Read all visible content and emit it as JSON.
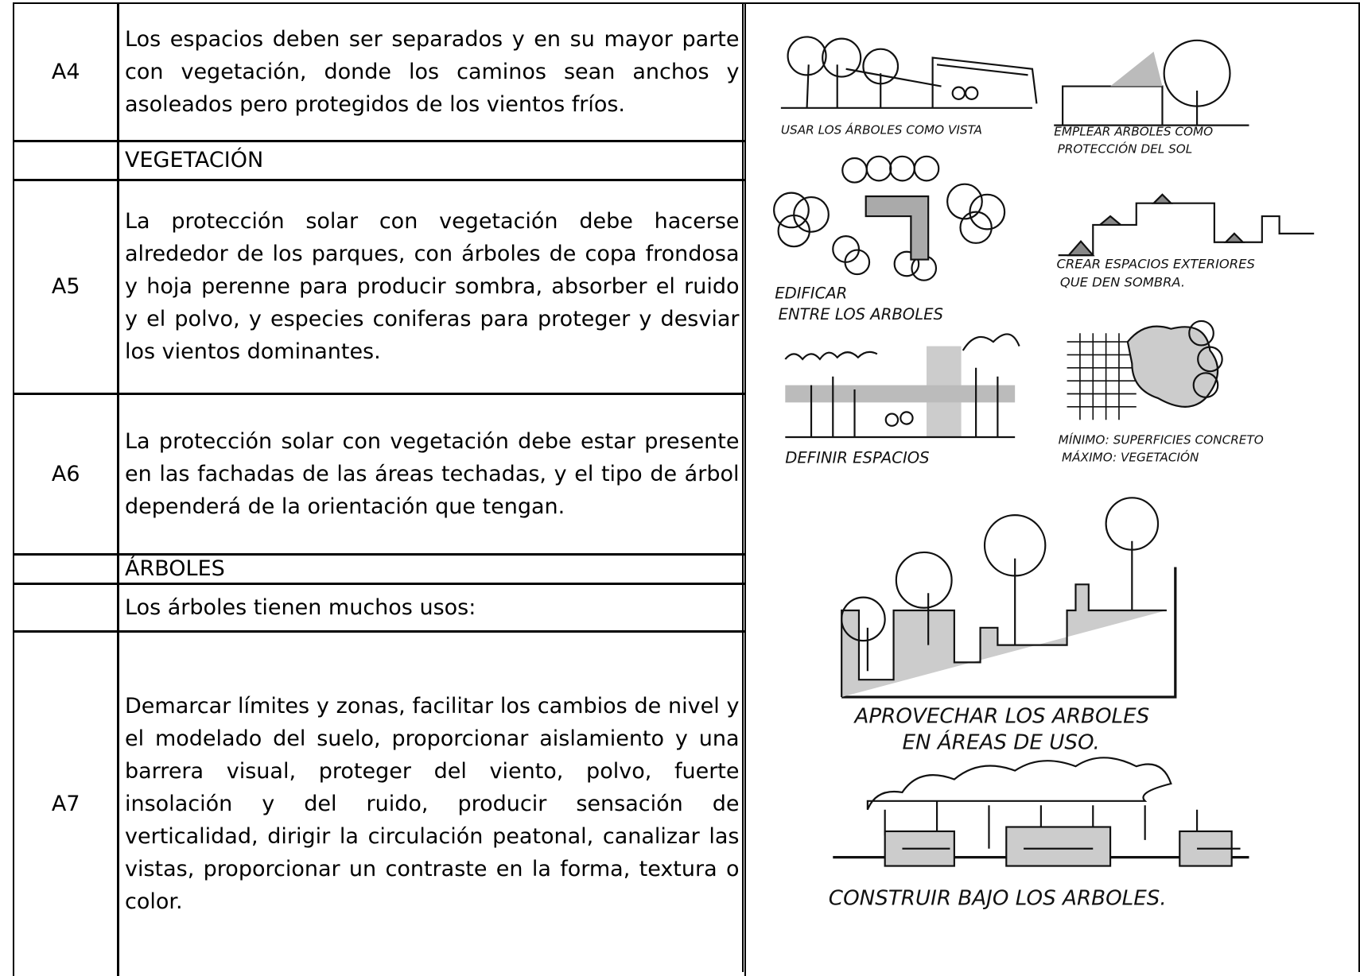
{
  "table": {
    "rows": [
      {
        "code": "A4",
        "text": "Los espacios deben ser separados y en su mayor parte con vegetación, donde los caminos sean anchos y asoleados pero protegidos de los vientos fríos."
      },
      {
        "text": "VEGETACIÓN"
      },
      {
        "code": "A5",
        "text": "La protección solar con vegetación  debe hacerse alrededor de los parques, con árboles de copa frondosa y hoja perenne para producir sombra, absorber el ruido y el polvo, y especies coniferas para proteger y desviar los vientos dominantes."
      },
      {
        "code": "A6",
        "text": "La protección solar con vegetación debe estar presente en las fachadas de las áreas techadas, y el tipo de árbol dependerá de la orientación que tengan."
      },
      {
        "text": "ÁRBOLES"
      },
      {
        "text": "Los árboles tienen muchos usos:"
      },
      {
        "code": "A7",
        "text": "Demarcar límites y zonas, facilitar los cambios de nivel y el modelado del suelo, proporcionar aislamiento y una barrera visual, proteger del viento, polvo, fuerte insolación y del ruido, producir sensación de verticalidad, dirigir la circulación peatonal, canalizar las vistas, proporcionar un contraste en la forma, textura o color."
      }
    ]
  },
  "sketches": {
    "captions": [
      {
        "lines": [
          "USAR LOS ÁRBOLES COMO VISTA"
        ]
      },
      {
        "lines": [
          "EMPLEAR ARBOLES COMO",
          "PROTECCIÓN DEL SOL"
        ]
      },
      {
        "lines": [
          "EDIFICAR",
          "ENTRE LOS ARBOLES"
        ]
      },
      {
        "lines": [
          "CREAR ESPACIOS EXTERIORES",
          "QUE DEN SOMBRA."
        ]
      },
      {
        "lines": [
          "DEFINIR ESPACIOS"
        ]
      },
      {
        "lines": [
          "MÍNIMO: SUPERFICIES CONCRETO",
          "MÁXIMO: VEGETACIÓN"
        ]
      },
      {
        "lines": [
          "APROVECHAR LOS ARBOLES",
          "EN ÁREAS DE USO."
        ]
      },
      {
        "lines": [
          "CONSTRUIR BAJO LOS ARBOLES."
        ]
      }
    ]
  }
}
